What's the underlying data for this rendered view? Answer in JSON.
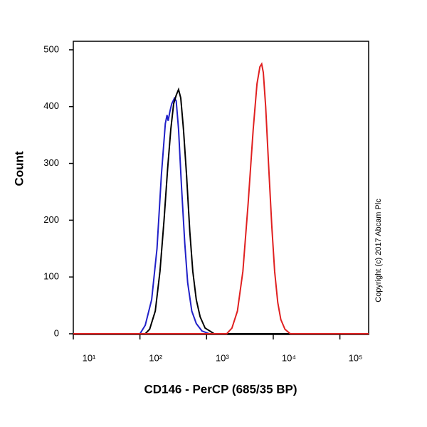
{
  "chart_data": {
    "type": "line",
    "xlabel": "CD146 - PerCP (685/35 BP)",
    "ylabel": "Count",
    "annotation": "Copyright (c) 2017 Abcam Plc",
    "xscale": "log",
    "xlim": [
      10,
      270000
    ],
    "ylim": [
      0,
      515
    ],
    "xticks": [
      {
        "value": 10,
        "label": "10¹"
      },
      {
        "value": 100,
        "label": "10²"
      },
      {
        "value": 1000,
        "label": "10³"
      },
      {
        "value": 10000,
        "label": "10⁴"
      },
      {
        "value": 100000,
        "label": "10⁵"
      }
    ],
    "yticks": [
      0,
      100,
      200,
      300,
      400,
      500
    ],
    "grid": false,
    "series": [
      {
        "color": "#2020c8",
        "x": [
          10,
          100,
          120,
          150,
          180,
          210,
          240,
          255,
          265,
          280,
          300,
          330,
          350,
          380,
          420,
          470,
          520,
          600,
          700,
          850,
          1100,
          270000
        ],
        "values": [
          0,
          0,
          15,
          60,
          150,
          280,
          370,
          385,
          375,
          390,
          405,
          415,
          410,
          360,
          260,
          160,
          90,
          40,
          18,
          5,
          0,
          0
        ]
      },
      {
        "color": "#000000",
        "x": [
          10,
          120,
          140,
          170,
          200,
          230,
          260,
          290,
          320,
          350,
          380,
          410,
          450,
          500,
          560,
          620,
          700,
          800,
          950,
          1300,
          270000
        ],
        "values": [
          0,
          0,
          8,
          40,
          110,
          200,
          290,
          360,
          405,
          420,
          430,
          415,
          360,
          280,
          180,
          110,
          60,
          30,
          10,
          0,
          0
        ]
      },
      {
        "color": "#e02020",
        "x": [
          10,
          2000,
          2400,
          2900,
          3500,
          4200,
          5000,
          5700,
          6300,
          6700,
          7100,
          7700,
          8500,
          9500,
          10500,
          11700,
          13000,
          15000,
          18000,
          270000
        ],
        "values": [
          0,
          0,
          10,
          40,
          110,
          230,
          360,
          440,
          470,
          475,
          460,
          400,
          300,
          190,
          110,
          55,
          25,
          8,
          0,
          0
        ]
      }
    ]
  }
}
